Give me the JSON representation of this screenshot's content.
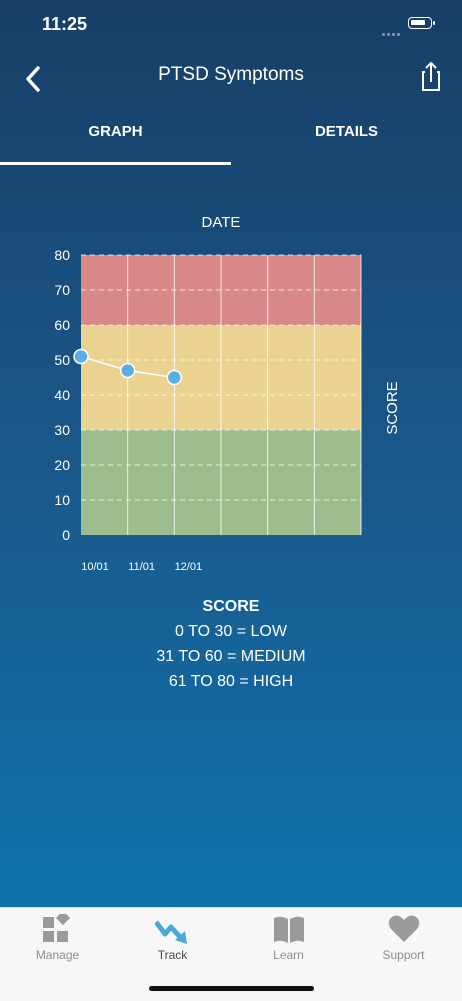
{
  "status": {
    "time": "11:25"
  },
  "nav": {
    "title": "PTSD Symptoms",
    "back_icon": "chevron-left-icon",
    "share_icon": "share-icon"
  },
  "tabs": [
    {
      "label": "GRAPH",
      "active": true
    },
    {
      "label": "DETAILS",
      "active": false
    }
  ],
  "chart_data": {
    "type": "line",
    "title": "DATE",
    "xlabel": "DATE",
    "ylabel": "SCORE",
    "ylim": [
      0,
      80
    ],
    "yticks": [
      0,
      10,
      20,
      30,
      40,
      50,
      60,
      70,
      80
    ],
    "x_tick_labels": [
      "10/01",
      "11/01",
      "12/01"
    ],
    "bands": [
      {
        "from": 0,
        "to": 30,
        "color": "#9dbd8f"
      },
      {
        "from": 30,
        "to": 60,
        "color": "#ead290"
      },
      {
        "from": 60,
        "to": 80,
        "color": "#d98888"
      }
    ],
    "series": [
      {
        "points": [
          {
            "x": "10/01",
            "y": 51
          },
          {
            "x": "11/01",
            "y": 47
          },
          {
            "x": "12/01",
            "y": 45
          }
        ]
      }
    ],
    "point_color": "#5aafe0",
    "grid": true
  },
  "legend": {
    "title": "SCORE",
    "lines": [
      "0 TO 30 = LOW",
      "31 TO 60 = MEDIUM",
      "61 TO 80 = HIGH"
    ]
  },
  "tabbar": {
    "items": [
      {
        "label": "Manage",
        "icon": "manage-icon",
        "active": false
      },
      {
        "label": "Track",
        "icon": "track-icon",
        "active": true
      },
      {
        "label": "Learn",
        "icon": "book-icon",
        "active": false
      },
      {
        "label": "Support",
        "icon": "heart-icon",
        "active": false
      }
    ]
  }
}
